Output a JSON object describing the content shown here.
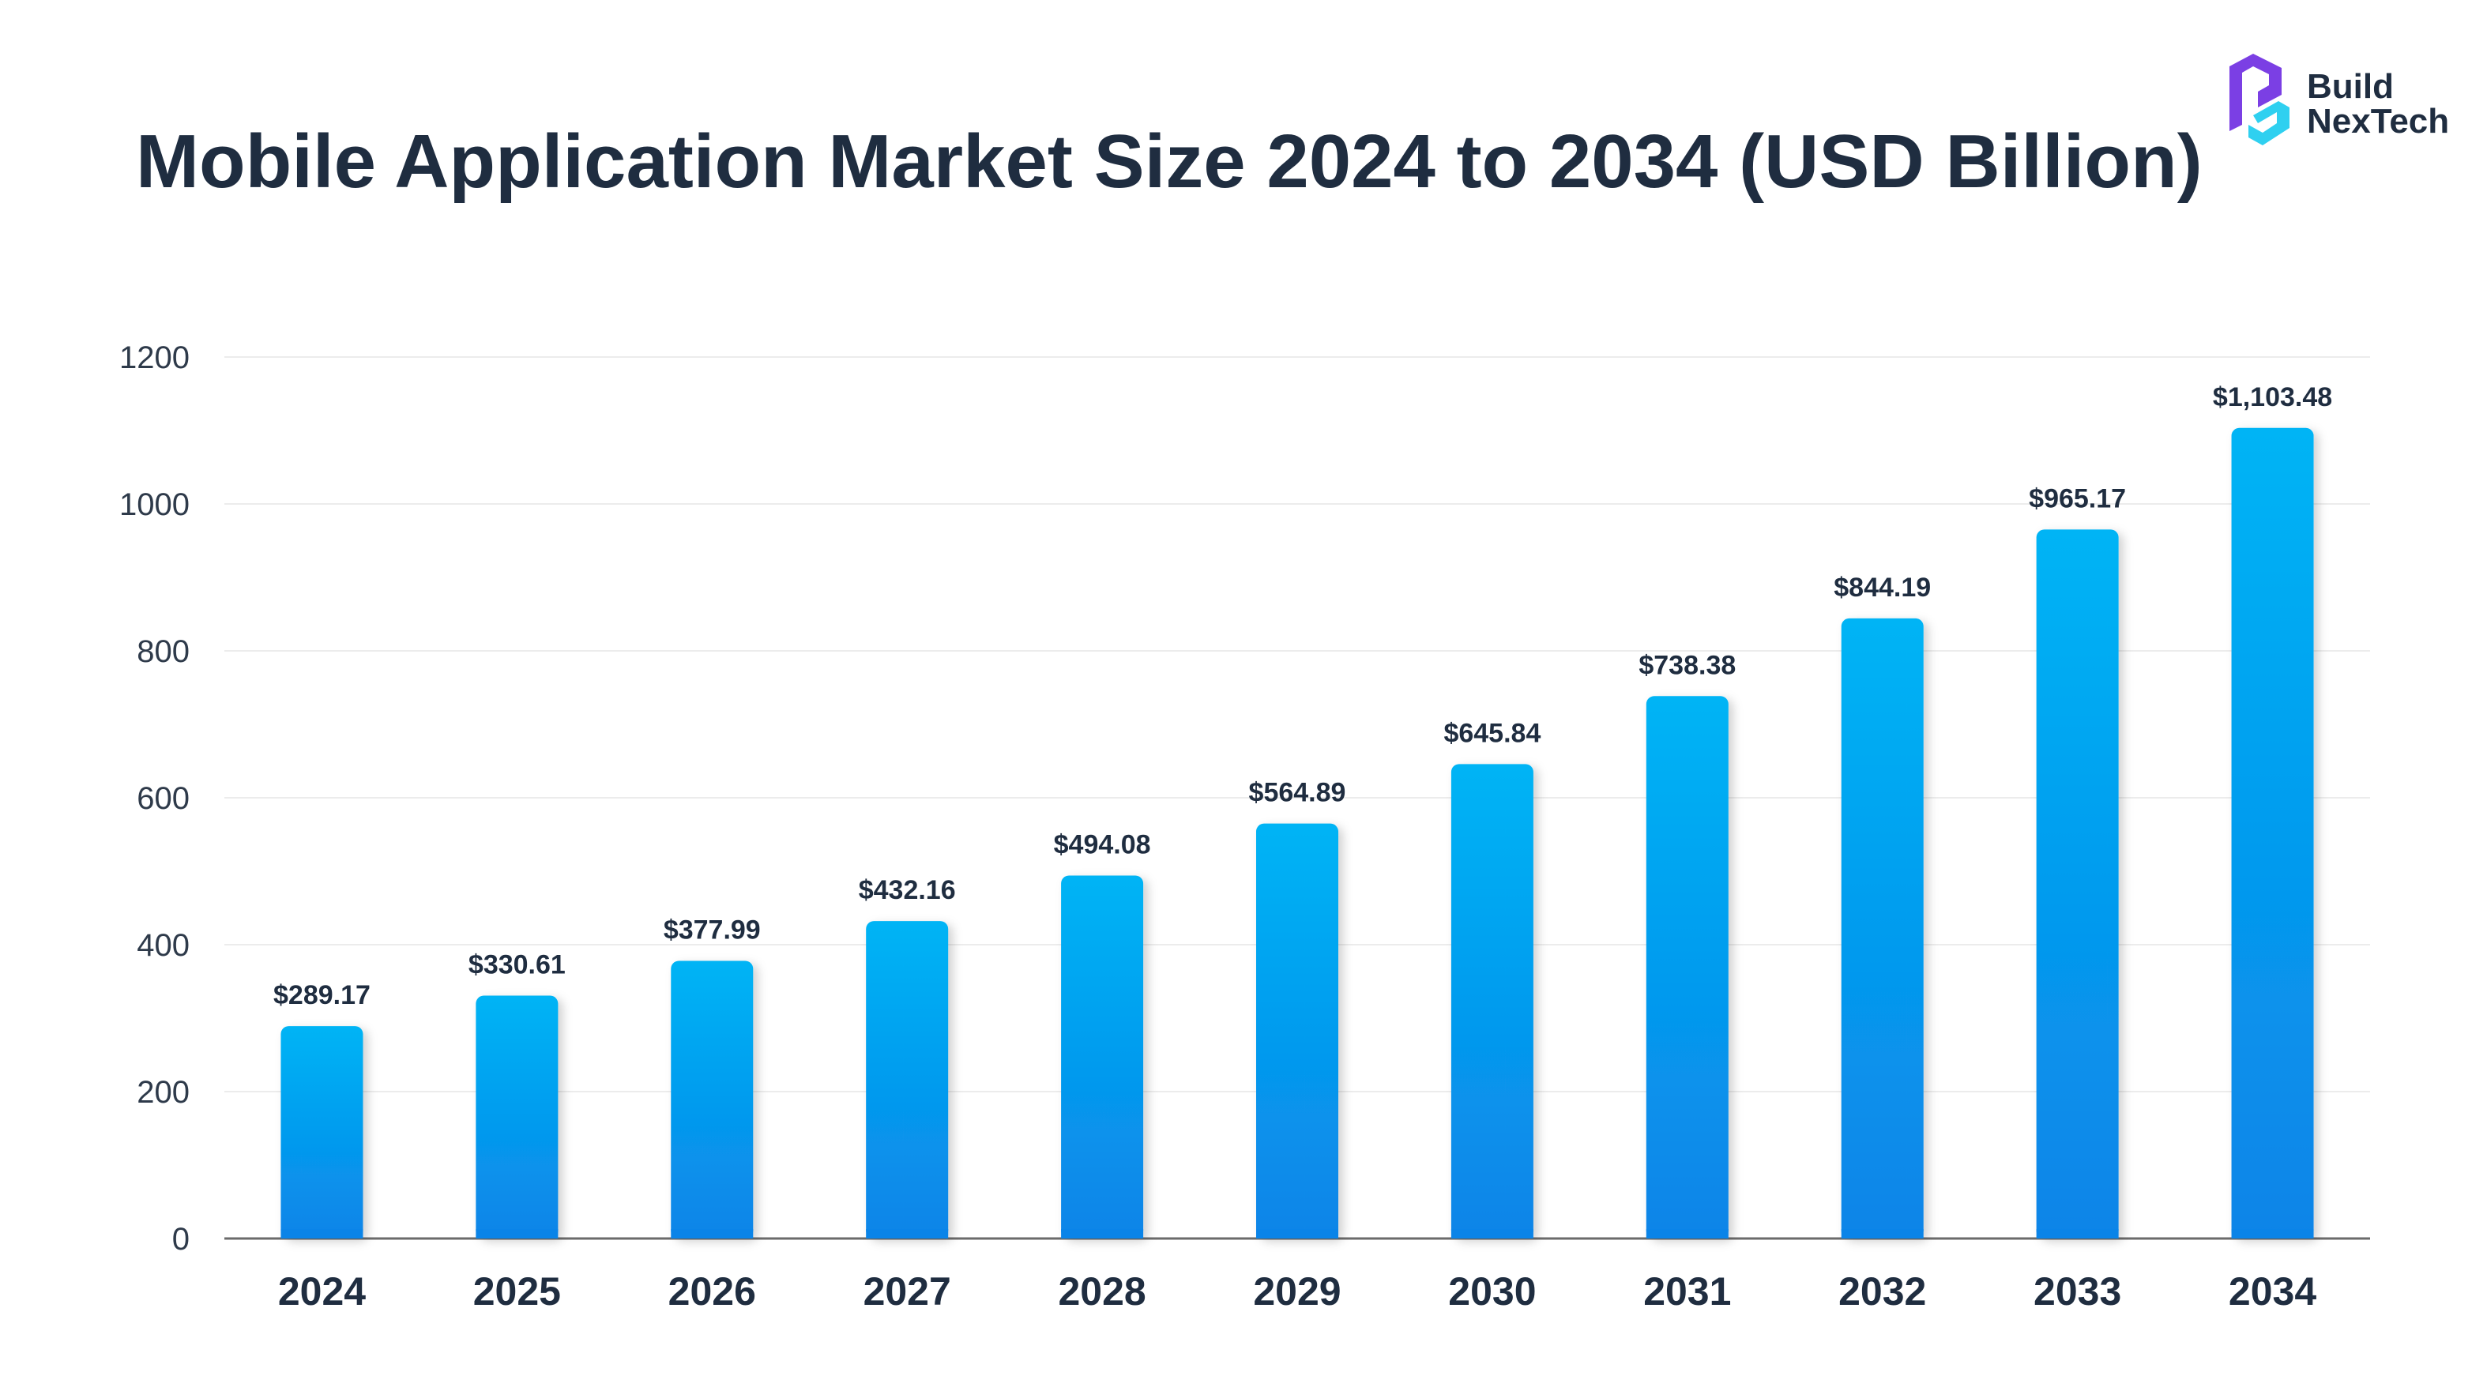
{
  "chart_data": {
    "type": "bar",
    "title": "Mobile Application Market Size 2024 to 2034 (USD Billion)",
    "xlabel": "",
    "ylabel": "",
    "ylim": [
      0,
      1200
    ],
    "yticks": [
      "0",
      "200",
      "400",
      "600",
      "800",
      "1000",
      "1200"
    ],
    "ytick_values": [
      0,
      200,
      400,
      600,
      800,
      1000,
      1200
    ],
    "grid": true,
    "categories": [
      "2024",
      "2025",
      "2026",
      "2027",
      "2028",
      "2029",
      "2030",
      "2031",
      "2032",
      "2033",
      "2034"
    ],
    "values": [
      289.17,
      330.61,
      377.99,
      432.16,
      494.08,
      564.89,
      645.84,
      738.38,
      844.19,
      965.17,
      1103.48
    ],
    "data_labels": [
      "$289.17",
      "$330.61",
      "$377.99",
      "$432.16",
      "$494.08",
      "$564.89",
      "$645.84",
      "$738.38",
      "$844.19",
      "$965.17",
      "$1,103.48"
    ],
    "colors": {
      "bar_top": "#00b4f5",
      "bar_bottom": "#0a84e8",
      "grid": "#ececec",
      "axis": "#6b6b6b",
      "text": "#1f2d40"
    }
  },
  "brand": {
    "name_line1": "Build",
    "name_line2": "NexTech",
    "logo_icon": "brand-logo-icon",
    "colors": {
      "purple": "#7b3fe4",
      "cyan": "#2fd0f0"
    }
  }
}
